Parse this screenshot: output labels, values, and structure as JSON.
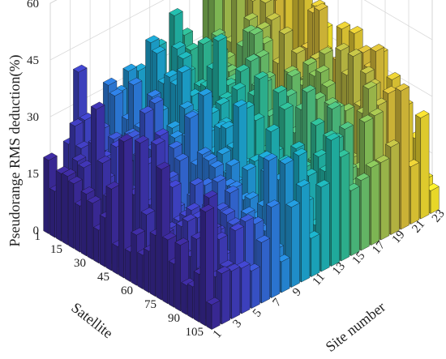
{
  "chart_data": {
    "type": "bar3d",
    "zlabel": "Pseudorange RMS deduction(%)",
    "satellite_label": "Satellite",
    "site_label": "Site number",
    "zlim": [
      0,
      60
    ],
    "z_ticks": [
      0,
      15,
      30,
      45,
      60
    ],
    "satellite_ticks": [
      1,
      15,
      30,
      45,
      60,
      75,
      90,
      105
    ],
    "site_ticks": [
      1,
      3,
      5,
      7,
      9,
      11,
      13,
      15,
      17,
      19,
      21,
      23
    ],
    "satellite_range": [
      1,
      105
    ],
    "site_range": [
      1,
      23
    ],
    "grid": true,
    "colormap": "parula-by-site",
    "colormap_stops": [
      "#3b2a9a",
      "#3f44c8",
      "#2a7fdc",
      "#1aa6c9",
      "#22b59b",
      "#7cbf5a",
      "#d3b83a",
      "#f4e22a"
    ],
    "site_profile": {
      "site_ticks": [
        1,
        5,
        9,
        13,
        17,
        21,
        23
      ],
      "peak_values": [
        42,
        40,
        44,
        46,
        50,
        59,
        38
      ],
      "typical_values": [
        20,
        24,
        28,
        32,
        38,
        44,
        14
      ]
    }
  }
}
